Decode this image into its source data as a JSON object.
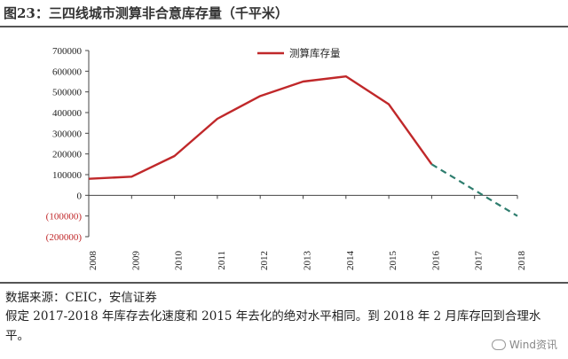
{
  "title": "图23：三四线城市测算非合意库存量（千平米）",
  "source": "数据来源：CEIC，安信证券",
  "note": "假定 2017-2018 年库存去化速度和 2015 年去化的绝对水平相同。到 2018 年 2 月库存回到合理水平。",
  "watermark": "Wind资讯",
  "colors": {
    "series": "#c0282a",
    "projection": "#2e7d6e"
  },
  "chart_data": {
    "type": "line",
    "x": [
      "2008",
      "2009",
      "2010",
      "2011",
      "2012",
      "2013",
      "2014",
      "2015",
      "2016",
      "2017",
      "2018"
    ],
    "series": [
      {
        "name": "测算库存量",
        "values": [
          80000,
          90000,
          190000,
          370000,
          480000,
          550000,
          575000,
          440000,
          150000,
          null,
          null
        ]
      },
      {
        "name": "",
        "style": "dashed",
        "values": [
          null,
          null,
          null,
          null,
          null,
          null,
          null,
          null,
          150000,
          25000,
          -100000
        ]
      }
    ],
    "yticks": [
      "700000",
      "600000",
      "500000",
      "400000",
      "300000",
      "200000",
      "100000",
      "0",
      "(100000)",
      "(200000)"
    ],
    "ylim": [
      -200000,
      700000
    ],
    "legend": "top-center",
    "grid": false
  }
}
